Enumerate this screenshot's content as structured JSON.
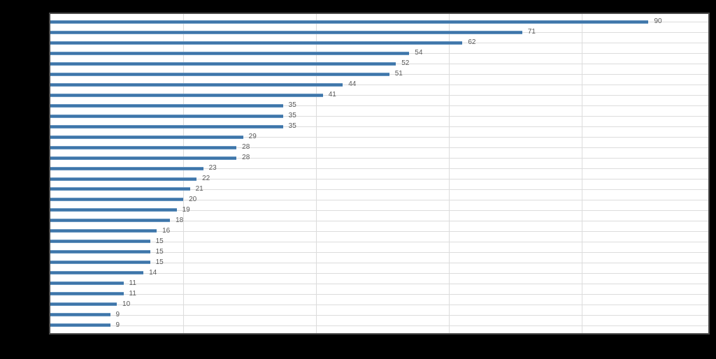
{
  "canvas": {
    "background_color": "#000000",
    "plot_background_color": "#ffffff",
    "frame_color": "#4a4a4a",
    "grid_color": "#dcdcdc"
  },
  "chart_data": {
    "type": "bar",
    "orientation": "horizontal",
    "title": "",
    "xlabel": "",
    "ylabel": "",
    "values": [
      90,
      71,
      62,
      54,
      52,
      51,
      44,
      41,
      35,
      35,
      35,
      29,
      28,
      28,
      23,
      22,
      21,
      20,
      19,
      18,
      16,
      15,
      15,
      15,
      14,
      11,
      11,
      10,
      9,
      9
    ],
    "data_labels": [
      "90",
      "71",
      "62",
      "54",
      "52",
      "51",
      "44",
      "41",
      "35",
      "35",
      "35",
      "29",
      "28",
      "28",
      "23",
      "22",
      "21",
      "20",
      "19",
      "18",
      "16",
      "15",
      "15",
      "15",
      "14",
      "11",
      "11",
      "10",
      "9",
      "9"
    ],
    "xlim": [
      0,
      99
    ],
    "x_gridlines_at": [
      20,
      40,
      60,
      80
    ],
    "grid": true,
    "legend_visible": false,
    "category_axis_labels_visible": false,
    "bar_color": "#3b73a8",
    "bar_color_light": "#7fa8cc",
    "value_label_color": "#595959"
  }
}
